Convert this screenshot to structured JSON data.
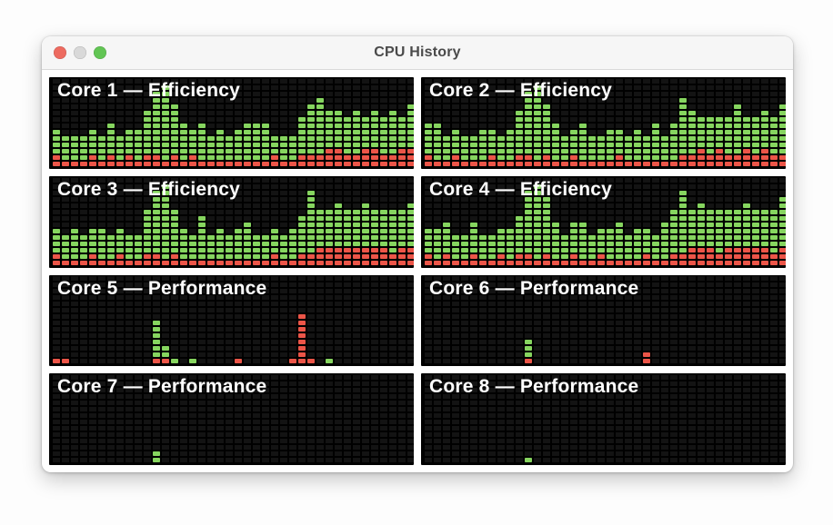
{
  "window": {
    "title": "CPU History",
    "traffic_lights": [
      "close",
      "minimize",
      "zoom"
    ]
  },
  "colors": {
    "cell_green": "#86d55f",
    "cell_red": "#ec5548",
    "panel_bg": "#000000",
    "empty_cell": "#131313",
    "titlebar_bg": "#f6f6f6",
    "light_red": "#ed6b60",
    "light_gray": "#d9d9d9",
    "light_green": "#62c554"
  },
  "grid": {
    "columns": 40,
    "rows": 14,
    "column_format": "[red_cells_bottom, green_cells_above]"
  },
  "cores": [
    {
      "label": "Core 1 — Efficiency",
      "cols": [
        [
          2,
          4
        ],
        [
          1,
          4
        ],
        [
          1,
          4
        ],
        [
          1,
          4
        ],
        [
          2,
          4
        ],
        [
          1,
          4
        ],
        [
          2,
          5
        ],
        [
          1,
          4
        ],
        [
          2,
          4
        ],
        [
          1,
          5
        ],
        [
          2,
          7
        ],
        [
          2,
          10
        ],
        [
          1,
          12
        ],
        [
          2,
          8
        ],
        [
          1,
          6
        ],
        [
          2,
          4
        ],
        [
          1,
          6
        ],
        [
          1,
          4
        ],
        [
          1,
          5
        ],
        [
          1,
          4
        ],
        [
          1,
          5
        ],
        [
          1,
          6
        ],
        [
          1,
          6
        ],
        [
          1,
          6
        ],
        [
          2,
          3
        ],
        [
          1,
          4
        ],
        [
          1,
          4
        ],
        [
          2,
          6
        ],
        [
          2,
          8
        ],
        [
          2,
          9
        ],
        [
          3,
          6
        ],
        [
          3,
          6
        ],
        [
          2,
          6
        ],
        [
          2,
          7
        ],
        [
          3,
          5
        ],
        [
          3,
          6
        ],
        [
          2,
          6
        ],
        [
          2,
          7
        ],
        [
          3,
          5
        ],
        [
          3,
          7
        ]
      ]
    },
    {
      "label": "Core 2 — Efficiency",
      "cols": [
        [
          2,
          5
        ],
        [
          1,
          6
        ],
        [
          1,
          4
        ],
        [
          2,
          4
        ],
        [
          1,
          4
        ],
        [
          1,
          4
        ],
        [
          1,
          5
        ],
        [
          2,
          4
        ],
        [
          1,
          4
        ],
        [
          1,
          5
        ],
        [
          2,
          7
        ],
        [
          2,
          10
        ],
        [
          1,
          12
        ],
        [
          2,
          8
        ],
        [
          1,
          6
        ],
        [
          1,
          4
        ],
        [
          2,
          4
        ],
        [
          1,
          6
        ],
        [
          1,
          4
        ],
        [
          1,
          4
        ],
        [
          1,
          5
        ],
        [
          2,
          4
        ],
        [
          1,
          4
        ],
        [
          1,
          5
        ],
        [
          1,
          4
        ],
        [
          1,
          6
        ],
        [
          1,
          4
        ],
        [
          1,
          6
        ],
        [
          2,
          9
        ],
        [
          2,
          7
        ],
        [
          3,
          5
        ],
        [
          2,
          6
        ],
        [
          3,
          5
        ],
        [
          2,
          6
        ],
        [
          2,
          8
        ],
        [
          3,
          5
        ],
        [
          2,
          6
        ],
        [
          3,
          6
        ],
        [
          2,
          6
        ],
        [
          2,
          8
        ]
      ]
    },
    {
      "label": "Core 3 — Efficiency",
      "cols": [
        [
          2,
          4
        ],
        [
          1,
          4
        ],
        [
          1,
          5
        ],
        [
          1,
          4
        ],
        [
          2,
          4
        ],
        [
          1,
          5
        ],
        [
          1,
          4
        ],
        [
          2,
          4
        ],
        [
          1,
          4
        ],
        [
          1,
          4
        ],
        [
          2,
          7
        ],
        [
          2,
          10
        ],
        [
          1,
          12
        ],
        [
          2,
          7
        ],
        [
          1,
          5
        ],
        [
          1,
          4
        ],
        [
          1,
          7
        ],
        [
          1,
          4
        ],
        [
          1,
          5
        ],
        [
          1,
          4
        ],
        [
          1,
          5
        ],
        [
          1,
          6
        ],
        [
          1,
          4
        ],
        [
          1,
          4
        ],
        [
          2,
          4
        ],
        [
          1,
          4
        ],
        [
          1,
          5
        ],
        [
          2,
          6
        ],
        [
          2,
          10
        ],
        [
          3,
          6
        ],
        [
          3,
          6
        ],
        [
          3,
          7
        ],
        [
          3,
          6
        ],
        [
          3,
          6
        ],
        [
          3,
          7
        ],
        [
          3,
          6
        ],
        [
          3,
          6
        ],
        [
          2,
          7
        ],
        [
          3,
          6
        ],
        [
          3,
          7
        ]
      ]
    },
    {
      "label": "Core 4 — Efficiency",
      "cols": [
        [
          2,
          4
        ],
        [
          1,
          5
        ],
        [
          2,
          5
        ],
        [
          1,
          4
        ],
        [
          1,
          4
        ],
        [
          2,
          5
        ],
        [
          1,
          4
        ],
        [
          1,
          4
        ],
        [
          2,
          4
        ],
        [
          1,
          5
        ],
        [
          2,
          6
        ],
        [
          2,
          10
        ],
        [
          1,
          12
        ],
        [
          2,
          9
        ],
        [
          1,
          6
        ],
        [
          1,
          4
        ],
        [
          2,
          5
        ],
        [
          1,
          6
        ],
        [
          1,
          4
        ],
        [
          2,
          4
        ],
        [
          1,
          5
        ],
        [
          1,
          6
        ],
        [
          1,
          4
        ],
        [
          1,
          5
        ],
        [
          2,
          4
        ],
        [
          1,
          4
        ],
        [
          1,
          6
        ],
        [
          2,
          7
        ],
        [
          2,
          10
        ],
        [
          3,
          6
        ],
        [
          3,
          7
        ],
        [
          3,
          6
        ],
        [
          2,
          7
        ],
        [
          3,
          6
        ],
        [
          3,
          6
        ],
        [
          3,
          7
        ],
        [
          3,
          6
        ],
        [
          3,
          6
        ],
        [
          2,
          7
        ],
        [
          3,
          8
        ]
      ]
    },
    {
      "label": "Core 5 — Performance",
      "cols": [
        [
          1,
          0
        ],
        [
          1,
          0
        ],
        [
          0,
          0
        ],
        [
          0,
          0
        ],
        [
          0,
          0
        ],
        [
          0,
          0
        ],
        [
          0,
          0
        ],
        [
          0,
          0
        ],
        [
          0,
          0
        ],
        [
          0,
          0
        ],
        [
          0,
          0
        ],
        [
          1,
          6
        ],
        [
          1,
          2
        ],
        [
          0,
          1
        ],
        [
          0,
          0
        ],
        [
          0,
          1
        ],
        [
          0,
          0
        ],
        [
          0,
          0
        ],
        [
          0,
          0
        ],
        [
          0,
          0
        ],
        [
          1,
          0
        ],
        [
          0,
          0
        ],
        [
          0,
          0
        ],
        [
          0,
          0
        ],
        [
          0,
          0
        ],
        [
          0,
          0
        ],
        [
          1,
          0
        ],
        [
          8,
          0
        ],
        [
          1,
          0
        ],
        [
          0,
          0
        ],
        [
          0,
          1
        ],
        [
          0,
          0
        ],
        [
          0,
          0
        ],
        [
          0,
          0
        ],
        [
          0,
          0
        ],
        [
          0,
          0
        ],
        [
          0,
          0
        ],
        [
          0,
          0
        ],
        [
          0,
          0
        ],
        [
          0,
          0
        ]
      ]
    },
    {
      "label": "Core 6 — Performance",
      "cols": [
        [
          0,
          0
        ],
        [
          0,
          0
        ],
        [
          0,
          0
        ],
        [
          0,
          0
        ],
        [
          0,
          0
        ],
        [
          0,
          0
        ],
        [
          0,
          0
        ],
        [
          0,
          0
        ],
        [
          0,
          0
        ],
        [
          0,
          0
        ],
        [
          0,
          0
        ],
        [
          1,
          3
        ],
        [
          0,
          0
        ],
        [
          0,
          0
        ],
        [
          0,
          0
        ],
        [
          0,
          0
        ],
        [
          0,
          0
        ],
        [
          0,
          0
        ],
        [
          0,
          0
        ],
        [
          0,
          0
        ],
        [
          0,
          0
        ],
        [
          0,
          0
        ],
        [
          0,
          0
        ],
        [
          0,
          0
        ],
        [
          2,
          0
        ],
        [
          0,
          0
        ],
        [
          0,
          0
        ],
        [
          0,
          0
        ],
        [
          0,
          0
        ],
        [
          0,
          0
        ],
        [
          0,
          0
        ],
        [
          0,
          0
        ],
        [
          0,
          0
        ],
        [
          0,
          0
        ],
        [
          0,
          0
        ],
        [
          0,
          0
        ],
        [
          0,
          0
        ],
        [
          0,
          0
        ],
        [
          0,
          0
        ],
        [
          0,
          0
        ]
      ]
    },
    {
      "label": "Core 7 — Performance",
      "cols": [
        [
          0,
          0
        ],
        [
          0,
          0
        ],
        [
          0,
          0
        ],
        [
          0,
          0
        ],
        [
          0,
          0
        ],
        [
          0,
          0
        ],
        [
          0,
          0
        ],
        [
          0,
          0
        ],
        [
          0,
          0
        ],
        [
          0,
          0
        ],
        [
          0,
          0
        ],
        [
          0,
          2
        ],
        [
          0,
          0
        ],
        [
          0,
          0
        ],
        [
          0,
          0
        ],
        [
          0,
          0
        ],
        [
          0,
          0
        ],
        [
          0,
          0
        ],
        [
          0,
          0
        ],
        [
          0,
          0
        ],
        [
          0,
          0
        ],
        [
          0,
          0
        ],
        [
          0,
          0
        ],
        [
          0,
          0
        ],
        [
          0,
          0
        ],
        [
          0,
          0
        ],
        [
          0,
          0
        ],
        [
          0,
          0
        ],
        [
          0,
          0
        ],
        [
          0,
          0
        ],
        [
          0,
          0
        ],
        [
          0,
          0
        ],
        [
          0,
          0
        ],
        [
          0,
          0
        ],
        [
          0,
          0
        ],
        [
          0,
          0
        ],
        [
          0,
          0
        ],
        [
          0,
          0
        ],
        [
          0,
          0
        ],
        [
          0,
          0
        ]
      ]
    },
    {
      "label": "Core 8 — Performance",
      "cols": [
        [
          0,
          0
        ],
        [
          0,
          0
        ],
        [
          0,
          0
        ],
        [
          0,
          0
        ],
        [
          0,
          0
        ],
        [
          0,
          0
        ],
        [
          0,
          0
        ],
        [
          0,
          0
        ],
        [
          0,
          0
        ],
        [
          0,
          0
        ],
        [
          0,
          0
        ],
        [
          0,
          1
        ],
        [
          0,
          0
        ],
        [
          0,
          0
        ],
        [
          0,
          0
        ],
        [
          0,
          0
        ],
        [
          0,
          0
        ],
        [
          0,
          0
        ],
        [
          0,
          0
        ],
        [
          0,
          0
        ],
        [
          0,
          0
        ],
        [
          0,
          0
        ],
        [
          0,
          0
        ],
        [
          0,
          0
        ],
        [
          0,
          0
        ],
        [
          0,
          0
        ],
        [
          0,
          0
        ],
        [
          0,
          0
        ],
        [
          0,
          0
        ],
        [
          0,
          0
        ],
        [
          0,
          0
        ],
        [
          0,
          0
        ],
        [
          0,
          0
        ],
        [
          0,
          0
        ],
        [
          0,
          0
        ],
        [
          0,
          0
        ],
        [
          0,
          0
        ],
        [
          0,
          0
        ],
        [
          0,
          0
        ],
        [
          0,
          0
        ]
      ]
    }
  ]
}
